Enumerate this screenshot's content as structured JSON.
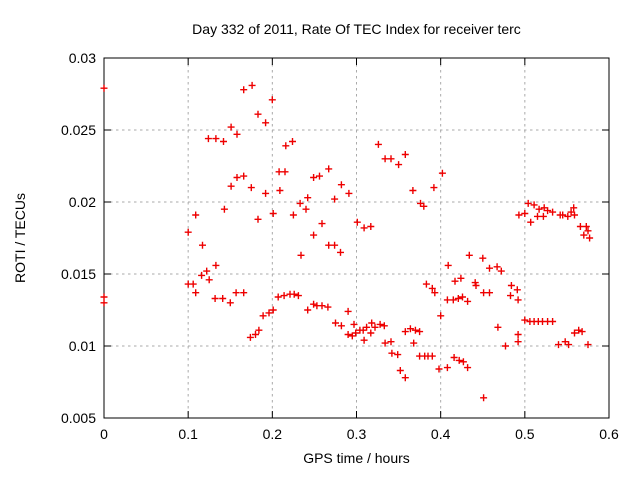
{
  "page": {
    "background": "#ffffff"
  },
  "chart_data": {
    "type": "scatter",
    "title": "Day 332 of 2011, Rate Of TEC Index for receiver terc",
    "xlabel": "GPS time / hours",
    "ylabel": "ROTI / TECUs",
    "xlim": [
      0,
      0.6
    ],
    "ylim": [
      0.005,
      0.03
    ],
    "xticks": [
      0,
      0.1,
      0.2,
      0.3,
      0.4,
      0.5,
      0.6
    ],
    "xtick_labels": [
      "0",
      "0.1",
      "0.2",
      "0.3",
      "0.4",
      "0.5",
      "0.6"
    ],
    "yticks": [
      0.005,
      0.01,
      0.015,
      0.02,
      0.025,
      0.03
    ],
    "ytick_labels": [
      "0.005",
      "0.01",
      "0.015",
      "0.02",
      "0.025",
      "0.03"
    ],
    "grid": true,
    "legend": "none",
    "marker": {
      "shape": "plus",
      "color": "#ee0000",
      "size": 7,
      "stroke_width": 1.4
    },
    "grid_color": "#aaaaaa",
    "axis_color": "#000000",
    "series": [
      {
        "name": "ROTI",
        "points": [
          [
            0,
            0.0279
          ],
          [
            0,
            0.0134
          ],
          [
            0,
            0.013
          ],
          [
            0.1,
            0.0179
          ],
          [
            0.1,
            0.0143
          ],
          [
            0.106,
            0.0143
          ],
          [
            0.109,
            0.0191
          ],
          [
            0.109,
            0.0137
          ],
          [
            0.116,
            0.0149
          ],
          [
            0.117,
            0.017
          ],
          [
            0.122,
            0.0152
          ],
          [
            0.124,
            0.0244
          ],
          [
            0.125,
            0.0146
          ],
          [
            0.132,
            0.0133
          ],
          [
            0.133,
            0.0244
          ],
          [
            0.133,
            0.0156
          ],
          [
            0.141,
            0.0133
          ],
          [
            0.142,
            0.0242
          ],
          [
            0.143,
            0.0195
          ],
          [
            0.15,
            0.013
          ],
          [
            0.151,
            0.0252
          ],
          [
            0.151,
            0.0211
          ],
          [
            0.157,
            0.0137
          ],
          [
            0.158,
            0.0247
          ],
          [
            0.158,
            0.0217
          ],
          [
            0.166,
            0.0278
          ],
          [
            0.166,
            0.0218
          ],
          [
            0.166,
            0.0137
          ],
          [
            0.174,
            0.0106
          ],
          [
            0.175,
            0.021
          ],
          [
            0.176,
            0.0281
          ],
          [
            0.18,
            0.0108
          ],
          [
            0.183,
            0.0261
          ],
          [
            0.183,
            0.0188
          ],
          [
            0.184,
            0.0111
          ],
          [
            0.189,
            0.0121
          ],
          [
            0.192,
            0.0255
          ],
          [
            0.192,
            0.0206
          ],
          [
            0.196,
            0.0123
          ],
          [
            0.2,
            0.0271
          ],
          [
            0.201,
            0.0192
          ],
          [
            0.201,
            0.0125
          ],
          [
            0.207,
            0.0134
          ],
          [
            0.208,
            0.0221
          ],
          [
            0.209,
            0.0208
          ],
          [
            0.214,
            0.0135
          ],
          [
            0.215,
            0.0221
          ],
          [
            0.216,
            0.0239
          ],
          [
            0.221,
            0.0136
          ],
          [
            0.224,
            0.0242
          ],
          [
            0.225,
            0.0191
          ],
          [
            0.226,
            0.0136
          ],
          [
            0.231,
            0.0135
          ],
          [
            0.233,
            0.0199
          ],
          [
            0.234,
            0.0163
          ],
          [
            0.24,
            0.0195
          ],
          [
            0.242,
            0.0203
          ],
          [
            0.242,
            0.0125
          ],
          [
            0.249,
            0.0217
          ],
          [
            0.249,
            0.0177
          ],
          [
            0.249,
            0.0129
          ],
          [
            0.253,
            0.0128
          ],
          [
            0.256,
            0.0218
          ],
          [
            0.259,
            0.0185
          ],
          [
            0.259,
            0.0128
          ],
          [
            0.266,
            0.0127
          ],
          [
            0.267,
            0.0223
          ],
          [
            0.267,
            0.017
          ],
          [
            0.274,
            0.0202
          ],
          [
            0.274,
            0.017
          ],
          [
            0.275,
            0.0116
          ],
          [
            0.281,
            0.0165
          ],
          [
            0.282,
            0.0212
          ],
          [
            0.282,
            0.0114
          ],
          [
            0.29,
            0.0124
          ],
          [
            0.29,
            0.0108
          ],
          [
            0.291,
            0.0206
          ],
          [
            0.295,
            0.0107
          ],
          [
            0.297,
            0.0115
          ],
          [
            0.299,
            0.0109
          ],
          [
            0.301,
            0.0186
          ],
          [
            0.304,
            0.0111
          ],
          [
            0.308,
            0.0111
          ],
          [
            0.309,
            0.0182
          ],
          [
            0.309,
            0.0104
          ],
          [
            0.312,
            0.0113
          ],
          [
            0.317,
            0.0183
          ],
          [
            0.317,
            0.0109
          ],
          [
            0.318,
            0.0116
          ],
          [
            0.322,
            0.0113
          ],
          [
            0.326,
            0.024
          ],
          [
            0.328,
            0.0115
          ],
          [
            0.333,
            0.0114
          ],
          [
            0.334,
            0.023
          ],
          [
            0.334,
            0.0102
          ],
          [
            0.341,
            0.023
          ],
          [
            0.341,
            0.0103
          ],
          [
            0.342,
            0.0095
          ],
          [
            0.349,
            0.0094
          ],
          [
            0.35,
            0.0226
          ],
          [
            0.352,
            0.0083
          ],
          [
            0.358,
            0.0233
          ],
          [
            0.358,
            0.011
          ],
          [
            0.358,
            0.0078
          ],
          [
            0.364,
            0.0112
          ],
          [
            0.367,
            0.0208
          ],
          [
            0.368,
            0.0102
          ],
          [
            0.37,
            0.0111
          ],
          [
            0.375,
            0.011
          ],
          [
            0.375,
            0.0093
          ],
          [
            0.376,
            0.0199
          ],
          [
            0.38,
            0.0197
          ],
          [
            0.381,
            0.0093
          ],
          [
            0.383,
            0.0143
          ],
          [
            0.385,
            0.0093
          ],
          [
            0.39,
            0.014
          ],
          [
            0.39,
            0.0093
          ],
          [
            0.392,
            0.021
          ],
          [
            0.393,
            0.0137
          ],
          [
            0.398,
            0.0084
          ],
          [
            0.4,
            0.0121
          ],
          [
            0.402,
            0.022
          ],
          [
            0.408,
            0.0132
          ],
          [
            0.408,
            0.0085
          ],
          [
            0.409,
            0.0156
          ],
          [
            0.415,
            0.0132
          ],
          [
            0.416,
            0.0092
          ],
          [
            0.417,
            0.0145
          ],
          [
            0.421,
            0.0133
          ],
          [
            0.422,
            0.009
          ],
          [
            0.424,
            0.0147
          ],
          [
            0.426,
            0.0134
          ],
          [
            0.427,
            0.0089
          ],
          [
            0.432,
            0.0131
          ],
          [
            0.432,
            0.0085
          ],
          [
            0.434,
            0.0163
          ],
          [
            0.441,
            0.0144
          ],
          [
            0.442,
            0.0142
          ],
          [
            0.45,
            0.0161
          ],
          [
            0.451,
            0.0137
          ],
          [
            0.451,
            0.0064
          ],
          [
            0.458,
            0.0154
          ],
          [
            0.458,
            0.0137
          ],
          [
            0.467,
            0.0155
          ],
          [
            0.468,
            0.0113
          ],
          [
            0.472,
            0.0152
          ],
          [
            0.477,
            0.01
          ],
          [
            0.483,
            0.0135
          ],
          [
            0.484,
            0.0142
          ],
          [
            0.491,
            0.0139
          ],
          [
            0.492,
            0.0132
          ],
          [
            0.492,
            0.0108
          ],
          [
            0.492,
            0.0103
          ],
          [
            0.493,
            0.0191
          ],
          [
            0.5,
            0.0192
          ],
          [
            0.5,
            0.0118
          ],
          [
            0.504,
            0.0199
          ],
          [
            0.506,
            0.0117
          ],
          [
            0.507,
            0.0186
          ],
          [
            0.511,
            0.0198
          ],
          [
            0.511,
            0.0117
          ],
          [
            0.515,
            0.019
          ],
          [
            0.516,
            0.0117
          ],
          [
            0.517,
            0.0195
          ],
          [
            0.521,
            0.0117
          ],
          [
            0.522,
            0.019
          ],
          [
            0.523,
            0.0196
          ],
          [
            0.527,
            0.0194
          ],
          [
            0.527,
            0.0117
          ],
          [
            0.533,
            0.0193
          ],
          [
            0.533,
            0.0117
          ],
          [
            0.54,
            0.0101
          ],
          [
            0.542,
            0.0191
          ],
          [
            0.545,
            0.0191
          ],
          [
            0.548,
            0.0103
          ],
          [
            0.551,
            0.019
          ],
          [
            0.552,
            0.0101
          ],
          [
            0.555,
            0.0193
          ],
          [
            0.558,
            0.0196
          ],
          [
            0.559,
            0.0191
          ],
          [
            0.559,
            0.0109
          ],
          [
            0.564,
            0.0111
          ],
          [
            0.566,
            0.0183
          ],
          [
            0.568,
            0.011
          ],
          [
            0.57,
            0.0177
          ],
          [
            0.573,
            0.0183
          ],
          [
            0.575,
            0.018
          ],
          [
            0.575,
            0.0101
          ],
          [
            0.577,
            0.0175
          ]
        ]
      }
    ]
  }
}
